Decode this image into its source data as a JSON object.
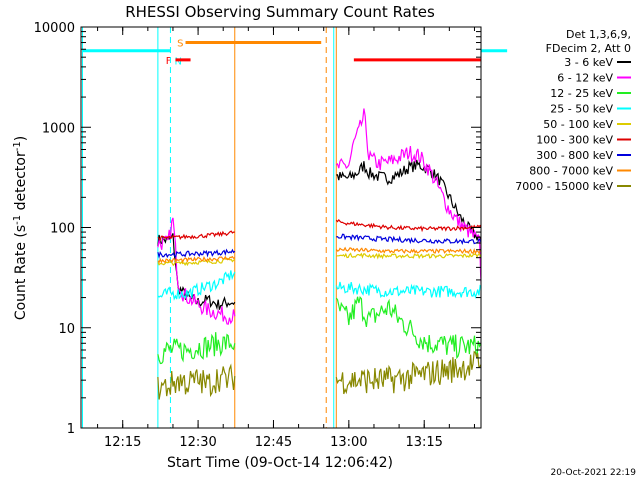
{
  "chart_data": {
    "type": "line",
    "title": "RHESSI Observing Summary Count Rates",
    "xlabel": "Start Time (09-Oct-14 12:06:42)",
    "ylabel_parts": [
      "Count Rate (s",
      "-1",
      " detector",
      "-1",
      ")"
    ],
    "yscale": "log",
    "ylim": [
      1,
      10000
    ],
    "xlim_minutes": [
      6.7,
      86.3
    ],
    "x_ticks": [
      {
        "m": 15,
        "label": "12:15"
      },
      {
        "m": 30,
        "label": "12:30"
      },
      {
        "m": 45,
        "label": "12:45"
      },
      {
        "m": 60,
        "label": "13:00"
      },
      {
        "m": 75,
        "label": "13:15"
      },
      {
        "m": 90,
        "label": "13:30"
      },
      {
        "m": 105,
        "label": "13:45"
      }
    ],
    "y_ticks": [
      {
        "v": 1,
        "label": "1"
      },
      {
        "v": 10,
        "label": "10"
      },
      {
        "v": 100,
        "label": "100"
      },
      {
        "v": 1000,
        "label": "1000"
      },
      {
        "v": 10000,
        "label": "10000"
      }
    ],
    "legend": {
      "position": "right",
      "header": [
        "Det 1,3,6,9,",
        "FDecim 2, Att 0"
      ],
      "entries": [
        {
          "label": "3 - 6 keV",
          "color": "#000000"
        },
        {
          "label": "6 - 12 keV",
          "color": "#ff00ff"
        },
        {
          "label": "12 - 25 keV",
          "color": "#22ee22"
        },
        {
          "label": "25 - 50 keV",
          "color": "#00ffff"
        },
        {
          "label": "50 - 100 keV",
          "color": "#ddcc00"
        },
        {
          "label": "100 - 300 keV",
          "color": "#dd0000"
        },
        {
          "label": "300 - 800 keV",
          "color": "#0000dd"
        },
        {
          "label": "800 - 7000 keV",
          "color": "#ff8800"
        },
        {
          "label": "7000 - 15000 keV",
          "color": "#888800"
        }
      ]
    },
    "flags": [
      {
        "label": "N",
        "color": "#00ffff",
        "start": 7,
        "end": 24.5,
        "y": 5800
      },
      {
        "label": "N",
        "color": "#00ffff",
        "start": 91.5,
        "end": 105,
        "y": 5800
      },
      {
        "label": "S",
        "color": "#ff8800",
        "start": 27.5,
        "end": 54.5,
        "y": 7000
      },
      {
        "label": "F",
        "color": "#ff0000",
        "start": 25.5,
        "end": 28.5,
        "y": 4700
      },
      {
        "label": "F",
        "color": "#ff0000",
        "start": 61,
        "end": 89,
        "y": 4700
      }
    ],
    "vlines": [
      {
        "m": 7.0,
        "color": "#00ffff",
        "style": "solid"
      },
      {
        "m": 22.0,
        "color": "#00ffff",
        "style": "solid"
      },
      {
        "m": 24.5,
        "color": "#00ffff",
        "style": "dashed"
      },
      {
        "m": 37.3,
        "color": "#ff8800",
        "style": "solid"
      },
      {
        "m": 55.5,
        "color": "#ff8800",
        "style": "dashed"
      },
      {
        "m": 57.5,
        "color": "#ff8800",
        "style": "solid"
      },
      {
        "m": 57.0,
        "color": "#00ffff",
        "style": "solid"
      },
      {
        "m": 91.5,
        "color": "#00ffff",
        "style": "solid"
      },
      {
        "m": 104.5,
        "color": "#00ffff",
        "style": "dashed"
      }
    ],
    "series": [
      {
        "name": "3 - 6 keV",
        "color": "#000000",
        "segments": [
          {
            "x": [
              22,
              24,
              25,
              26,
              28,
              30,
              32,
              34,
              36,
              37.3
            ],
            "y": [
              75,
              75,
              80,
              25,
              20,
              18,
              19,
              17,
              18,
              18
            ]
          },
          {
            "x": [
              57.5,
              58,
              60,
              62,
              63,
              64,
              66,
              68,
              70,
              72,
              74,
              76,
              78,
              80,
              82,
              84,
              85,
              86,
              87,
              88,
              89,
              90,
              91
            ],
            "y": [
              330,
              320,
              310,
              360,
              420,
              350,
              320,
              310,
              340,
              400,
              420,
              380,
              300,
              200,
              130,
              95,
              85,
              80,
              50,
              20,
              10,
              3,
              1
            ]
          }
        ]
      },
      {
        "name": "6 - 12 keV",
        "color": "#ff00ff",
        "segments": [
          {
            "x": [
              22,
              24,
              25,
              25.5,
              26,
              27,
              28,
              30,
              32,
              34,
              36,
              37.3
            ],
            "y": [
              70,
              70,
              120,
              60,
              30,
              22,
              20,
              17,
              15,
              14,
              13,
              13
            ]
          },
          {
            "x": [
              57.5,
              58,
              60,
              61,
              62,
              63,
              63.5,
              64,
              66,
              68,
              70,
              72,
              74,
              76,
              78,
              80,
              82,
              84,
              85,
              86,
              87,
              88,
              89,
              90,
              91
            ],
            "y": [
              380,
              400,
              420,
              700,
              900,
              1300,
              900,
              500,
              430,
              450,
              500,
              560,
              520,
              380,
              240,
              150,
              110,
              90,
              80,
              70,
              5,
              1,
              1,
              1,
              1
            ]
          }
        ]
      },
      {
        "name": "12 - 25 keV",
        "color": "#22ee22",
        "segments": [
          {
            "x": [
              22,
              24,
              26,
              28,
              30,
              32,
              34,
              36,
              37.3
            ],
            "y": [
              5.5,
              6,
              6,
              6,
              6.5,
              6.5,
              7,
              7,
              7
            ]
          },
          {
            "x": [
              57.5,
              60,
              62,
              64,
              66,
              68,
              70,
              72,
              74,
              76,
              78,
              80,
              82,
              84,
              86,
              88,
              89,
              90,
              91,
              92,
              93,
              94,
              95,
              96
            ],
            "y": [
              16,
              12,
              18,
              12,
              14,
              16,
              12,
              10,
              8,
              7,
              7,
              6.5,
              6.5,
              6.5,
              6.5,
              6.5,
              6,
              6,
              6,
              6,
              6,
              6,
              6,
              6
            ]
          }
        ]
      },
      {
        "name": "25 - 50 keV",
        "color": "#00ffff",
        "segments": [
          {
            "x": [
              22,
              24,
              26,
              28,
              30,
              32,
              34,
              36,
              37.3
            ],
            "y": [
              20,
              22,
              22,
              22,
              24,
              26,
              28,
              32,
              36
            ]
          },
          {
            "x": [
              57.5,
              60,
              64,
              68,
              72,
              76,
              80,
              84,
              88,
              92,
              96
            ],
            "y": [
              25,
              25,
              24,
              23,
              23,
              23,
              23,
              23,
              23,
              23,
              24
            ]
          }
        ]
      },
      {
        "name": "50 - 100 keV",
        "color": "#ddcc00",
        "segments": [
          {
            "x": [
              22,
              26,
              30,
              34,
              37.3
            ],
            "y": [
              44,
              44,
              45,
              46,
              48
            ]
          },
          {
            "x": [
              57.5,
              62,
              66,
              70,
              74,
              78,
              82,
              86,
              90,
              96
            ],
            "y": [
              52,
              53,
              52,
              52,
              52,
              52,
              52,
              53,
              54,
              55
            ]
          }
        ]
      },
      {
        "name": "100 - 300 keV",
        "color": "#dd0000",
        "segments": [
          {
            "x": [
              22,
              26,
              30,
              34,
              37.3
            ],
            "y": [
              78,
              80,
              82,
              85,
              90
            ]
          },
          {
            "x": [
              57.5,
              60,
              64,
              68,
              72,
              76,
              80,
              84,
              88,
              92,
              96
            ],
            "y": [
              115,
              110,
              105,
              100,
              98,
              97,
              98,
              100,
              102,
              103,
              104
            ]
          }
        ]
      },
      {
        "name": "300 - 800 keV",
        "color": "#0000dd",
        "segments": [
          {
            "x": [
              22,
              26,
              30,
              34,
              37.3
            ],
            "y": [
              54,
              54,
              55,
              56,
              58
            ]
          },
          {
            "x": [
              57.5,
              60,
              64,
              68,
              72,
              76,
              80,
              84,
              88,
              92,
              96
            ],
            "y": [
              82,
              80,
              78,
              76,
              75,
              74,
              73,
              73,
              73,
              72,
              72
            ]
          }
        ]
      },
      {
        "name": "800 - 7000 keV",
        "color": "#ff8800",
        "segments": [
          {
            "x": [
              22,
              26,
              30,
              34,
              37.3
            ],
            "y": [
              47,
              47,
              48,
              49,
              50
            ]
          },
          {
            "x": [
              57.5,
              60,
              64,
              68,
              72,
              76,
              80,
              84,
              88,
              92,
              96
            ],
            "y": [
              60,
              60,
              59,
              58,
              58,
              58,
              58,
              58,
              58,
              59,
              59
            ]
          }
        ]
      },
      {
        "name": "7000 - 15000 keV",
        "color": "#888800",
        "segments": [
          {
            "x": [
              22,
              24,
              26,
              28,
              30,
              32,
              34,
              36,
              37.3
            ],
            "y": [
              2.5,
              2.6,
              3,
              2.8,
              3,
              2.7,
              3.2,
              3,
              3.3
            ]
          },
          {
            "x": [
              57.5,
              60,
              64,
              68,
              72,
              76,
              80,
              84,
              88,
              92,
              96
            ],
            "y": [
              3,
              3,
              3,
              3,
              3.2,
              3.5,
              3.8,
              4.2,
              4.8,
              5.2,
              5.5
            ]
          }
        ]
      }
    ]
  },
  "footer": {
    "timestamp": "20-Oct-2021 22:19"
  }
}
